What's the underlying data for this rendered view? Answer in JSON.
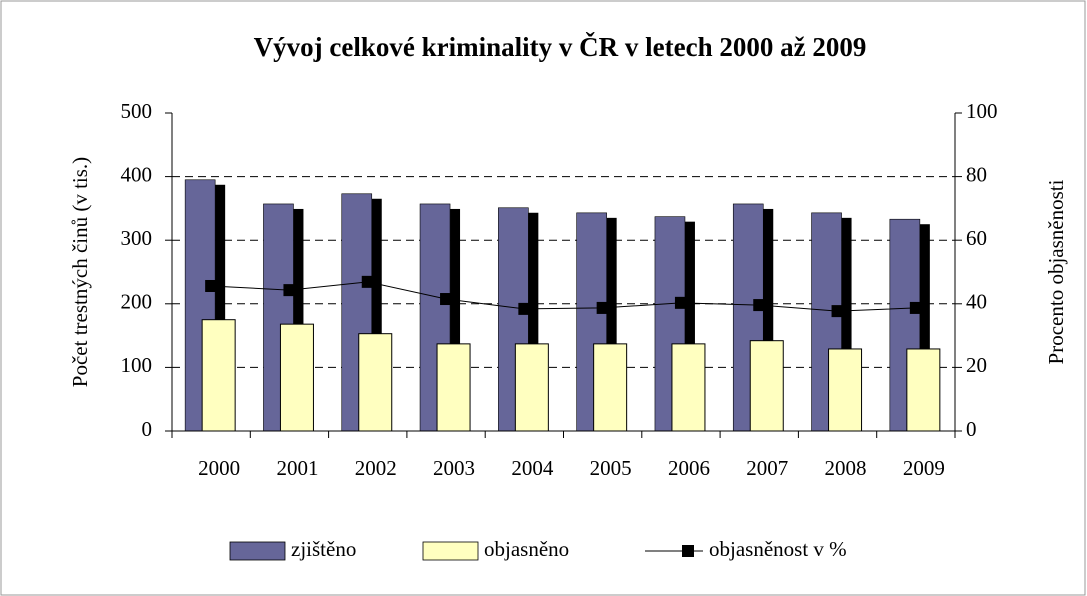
{
  "chart_data": {
    "type": "bar",
    "title": "Vývoj celkové kriminality v ČR v letech 2000 až 2009",
    "y_label": "Počet trestných činů (v tis.)",
    "y2_label": "Procento objasněnosti",
    "categories": [
      "2000",
      "2001",
      "2002",
      "2003",
      "2004",
      "2005",
      "2006",
      "2007",
      "2008",
      "2009"
    ],
    "series": [
      {
        "name": "zjištěno",
        "color": "#666699",
        "values": [
          395,
          357,
          373,
          357,
          351,
          343,
          337,
          357,
          343,
          333
        ]
      },
      {
        "name": "objasněno",
        "color": "#ffffc0",
        "values": [
          175,
          168,
          153,
          137,
          137,
          137,
          137,
          142,
          129,
          129
        ]
      },
      {
        "name": "objasněnost v %",
        "type": "line",
        "axis": "y2",
        "color": "#000000",
        "values": [
          45.6,
          44.3,
          46.9,
          41.5,
          38.4,
          38.7,
          40.3,
          39.6,
          37.7,
          38.7
        ]
      }
    ],
    "ylim": [
      0,
      500
    ],
    "yticks": [
      0,
      100,
      200,
      300,
      400,
      500
    ],
    "y2lim": [
      0,
      100
    ],
    "y2ticks": [
      0,
      20,
      40,
      60,
      80,
      100
    ],
    "grid": true,
    "legend": "bottom"
  }
}
